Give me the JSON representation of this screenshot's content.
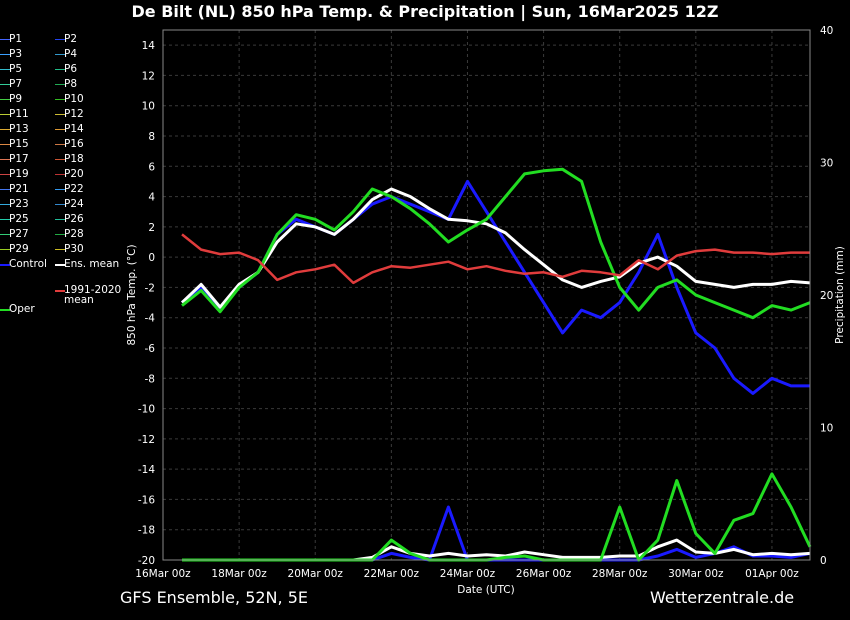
{
  "title": "De Bilt  (NL)  850 hPa Temp. & Precipitation | Sun, 16Mar2025 12Z",
  "footer_left": "GFS Ensemble, 52N, 5E",
  "footer_right": "Wetterzentrale.de",
  "colors": {
    "background": "#000000",
    "grid": "#3a3a3a",
    "control": "#1a1aff",
    "ens_mean": "#ffffff",
    "oper": "#22dd22",
    "climate_mean": "#e03c3c"
  },
  "legend": {
    "members": [
      {
        "label": "P1",
        "color": "#4466ff"
      },
      {
        "label": "P2",
        "color": "#2244ee"
      },
      {
        "label": "P3",
        "color": "#3aa0ff"
      },
      {
        "label": "P4",
        "color": "#3399cc"
      },
      {
        "label": "P5",
        "color": "#33bbcc"
      },
      {
        "label": "P6",
        "color": "#22bb88"
      },
      {
        "label": "P7",
        "color": "#33cc99"
      },
      {
        "label": "P8",
        "color": "#22aa55"
      },
      {
        "label": "P9",
        "color": "#44cc44"
      },
      {
        "label": "P10",
        "color": "#33bb22"
      },
      {
        "label": "P11",
        "color": "#bbcc33"
      },
      {
        "label": "P12",
        "color": "#ccbb33"
      },
      {
        "label": "P13",
        "color": "#ddaa33"
      },
      {
        "label": "P14",
        "color": "#dd9933"
      },
      {
        "label": "P15",
        "color": "#dd8844"
      },
      {
        "label": "P16",
        "color": "#cc7744"
      },
      {
        "label": "P17",
        "color": "#dd7755"
      },
      {
        "label": "P18",
        "color": "#cc5533"
      },
      {
        "label": "P19",
        "color": "#cc4444"
      },
      {
        "label": "P20",
        "color": "#bb3333"
      },
      {
        "label": "P21",
        "color": "#4477ee"
      },
      {
        "label": "P22",
        "color": "#3399ee"
      },
      {
        "label": "P23",
        "color": "#33aadd"
      },
      {
        "label": "P24",
        "color": "#3388cc"
      },
      {
        "label": "P25",
        "color": "#22ccaa"
      },
      {
        "label": "P26",
        "color": "#22bb99"
      },
      {
        "label": "P27",
        "color": "#33cc77"
      },
      {
        "label": "P28",
        "color": "#22aa44"
      },
      {
        "label": "P29",
        "color": "#99cc22"
      },
      {
        "label": "P30",
        "color": "#ccbb22"
      }
    ],
    "control_label": "Control",
    "ens_mean_label": "Ens. mean",
    "climate_label_1": "1991-2020",
    "climate_label_2": "mean",
    "oper_label": "Oper"
  },
  "chart_data": {
    "type": "line",
    "title": "De Bilt  (NL)  850 hPa Temp. & Precipitation | Sun, 16Mar2025 12Z",
    "xlabel": "Date (UTC)",
    "ylabel": "850 hPa Temp. (°C)",
    "y2label": "Precipitation (mm)",
    "x_ticks": [
      "16Mar 00z",
      "18Mar 00z",
      "20Mar 00z",
      "22Mar 00z",
      "24Mar 00z",
      "26Mar 00z",
      "28Mar 00z",
      "30Mar 00z",
      "01Apr 00z"
    ],
    "x_range_hours": [
      0,
      408
    ],
    "ylim": [
      -20,
      15
    ],
    "y_ticks": [
      -20,
      -18,
      -16,
      -14,
      -12,
      -10,
      -8,
      -6,
      -4,
      -2,
      0,
      2,
      4,
      6,
      8,
      10,
      12,
      14
    ],
    "y2lim": [
      0,
      40
    ],
    "y2_ticks": [
      0,
      10,
      20,
      30,
      40
    ],
    "grid": true,
    "legend_position": "left",
    "x_hours": [
      12,
      24,
      36,
      48,
      60,
      72,
      84,
      96,
      108,
      120,
      132,
      144,
      156,
      168,
      180,
      192,
      204,
      216,
      228,
      240,
      252,
      264,
      276,
      288,
      300,
      312,
      324,
      336,
      348,
      360,
      372,
      384,
      396,
      408
    ],
    "series": [
      {
        "name": "Control",
        "role": "control",
        "values": [
          -3,
          -2,
          -3.5,
          -2,
          -1,
          1.5,
          2.5,
          2,
          1.5,
          2.5,
          3.5,
          4,
          3.5,
          3,
          2.5,
          5,
          3,
          1,
          -1,
          -3,
          -5,
          -3.5,
          -4,
          -3,
          -1,
          1.5,
          -2,
          -5,
          -6,
          -8,
          -9,
          -8,
          -8.5,
          -8.5
        ]
      },
      {
        "name": "Ens. mean",
        "role": "ens_mean",
        "values": [
          -3,
          -1.8,
          -3.3,
          -1.8,
          -1,
          1,
          2.2,
          2,
          1.5,
          2.5,
          3.8,
          4.5,
          4,
          3.2,
          2.5,
          2.4,
          2.2,
          1.6,
          0.5,
          -0.5,
          -1.5,
          -2,
          -1.6,
          -1.3,
          -0.4,
          0,
          -0.6,
          -1.6,
          -1.8,
          -2,
          -1.8,
          -1.8,
          -1.6,
          -1.7
        ]
      },
      {
        "name": "Oper",
        "role": "oper",
        "values": [
          -3.2,
          -2.2,
          -3.6,
          -2,
          -1,
          1.5,
          2.8,
          2.5,
          1.8,
          3,
          4.5,
          4,
          3.2,
          2.2,
          1,
          1.8,
          2.5,
          4,
          5.5,
          5.7,
          5.8,
          5,
          1,
          -2,
          -3.5,
          -2,
          -1.5,
          -2.5,
          -3,
          -3.5,
          -4,
          -3.2,
          -3.5,
          -3
        ]
      },
      {
        "name": "1991-2020 mean",
        "role": "climate",
        "values": [
          1.5,
          0.5,
          0.2,
          0.3,
          -0.2,
          -1.5,
          -1,
          -0.8,
          -0.5,
          -1.7,
          -1,
          -0.6,
          -0.7,
          -0.5,
          -0.3,
          -0.8,
          -0.6,
          -0.9,
          -1.1,
          -1,
          -1.3,
          -0.9,
          -1,
          -1.2,
          -0.2,
          -0.8,
          0.1,
          0.4,
          0.5,
          0.3,
          0.3,
          0.2,
          0.3,
          0.3
        ]
      }
    ],
    "precip_series": [
      {
        "name": "Control",
        "role": "control",
        "values": [
          0,
          0,
          0,
          0,
          0,
          0,
          0,
          0,
          0,
          0,
          0,
          0.5,
          0.2,
          0,
          4,
          0,
          0,
          0,
          0,
          0,
          0,
          0,
          0,
          0,
          0,
          0.3,
          0.8,
          0.2,
          0.5,
          1,
          0.3,
          0.3,
          0.2,
          0.5
        ]
      },
      {
        "name": "Ens. mean",
        "role": "ens_mean",
        "values": [
          0,
          0,
          0,
          0,
          0,
          0,
          0,
          0,
          0,
          0,
          0.2,
          1,
          0.5,
          0.3,
          0.5,
          0.3,
          0.4,
          0.3,
          0.6,
          0.4,
          0.2,
          0.2,
          0.2,
          0.3,
          0.3,
          1,
          1.5,
          0.6,
          0.5,
          0.8,
          0.4,
          0.5,
          0.4,
          0.5
        ]
      },
      {
        "name": "Oper",
        "role": "oper",
        "values": [
          0,
          0,
          0,
          0,
          0,
          0,
          0,
          0,
          0,
          0,
          0,
          1.5,
          0.5,
          0,
          0,
          0,
          0,
          0.2,
          0.3,
          0,
          0,
          0,
          0,
          4,
          0,
          1.5,
          6,
          2,
          0.5,
          3,
          3.5,
          6.5,
          4,
          1
        ]
      }
    ]
  }
}
